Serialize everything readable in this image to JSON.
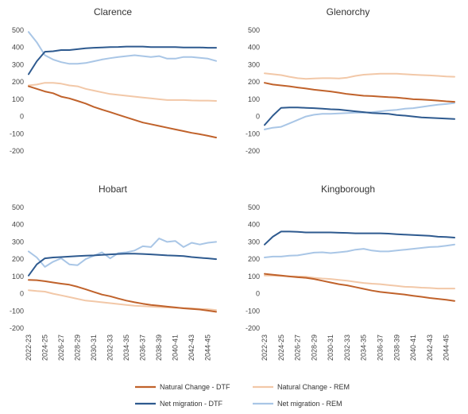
{
  "chart_data": {
    "type": "line",
    "legend_position": "bottom",
    "grid": false,
    "x": [
      "2022-23",
      "2023-24",
      "2024-25",
      "2025-26",
      "2026-27",
      "2027-28",
      "2028-29",
      "2029-30",
      "2030-31",
      "2031-32",
      "2032-33",
      "2033-34",
      "2034-35",
      "2035-36",
      "2036-37",
      "2037-38",
      "2038-39",
      "2039-40",
      "2040-41",
      "2041-42",
      "2042-43",
      "2043-44",
      "2044-45",
      "2045-46"
    ],
    "x_tick_labels": [
      "2022-23",
      "2024-25",
      "2026-27",
      "2028-29",
      "2030-31",
      "2032-33",
      "2034-35",
      "2036-37",
      "2038-39",
      "2040-41",
      "2042-43",
      "2044-45"
    ],
    "ylim": [
      -200,
      500
    ],
    "y_ticks": [
      "500",
      "400",
      "300",
      "200",
      "100",
      "0",
      "-100",
      "-200"
    ],
    "legend": [
      {
        "key": "nc_dtf",
        "label": "Natural Change - DTF",
        "color": "#c0622b"
      },
      {
        "key": "nc_rem",
        "label": "Natural Change - REM",
        "color": "#f2c8a8"
      },
      {
        "key": "nm_dtf",
        "label": "Net migration - DTF",
        "color": "#2e5a8f"
      },
      {
        "key": "nm_rem",
        "label": "Net migration - REM",
        "color": "#a9c6e6"
      }
    ],
    "panels": [
      {
        "title": "Clarence",
        "series": {
          "nc_dtf": [
            175,
            160,
            145,
            135,
            115,
            105,
            90,
            75,
            55,
            40,
            25,
            10,
            -5,
            -20,
            -35,
            -45,
            -55,
            -65,
            -75,
            -85,
            -95,
            -103,
            -112,
            -122
          ],
          "nc_rem": [
            180,
            185,
            195,
            195,
            190,
            180,
            175,
            160,
            150,
            140,
            130,
            125,
            120,
            115,
            110,
            105,
            100,
            95,
            95,
            95,
            93,
            92,
            92,
            90
          ],
          "nm_dtf": [
            245,
            320,
            375,
            378,
            385,
            385,
            390,
            395,
            398,
            400,
            402,
            403,
            405,
            405,
            405,
            402,
            402,
            402,
            402,
            400,
            400,
            400,
            398,
            398
          ],
          "nm_rem": [
            490,
            430,
            355,
            330,
            315,
            305,
            305,
            310,
            320,
            330,
            338,
            345,
            350,
            355,
            350,
            345,
            350,
            335,
            335,
            345,
            345,
            340,
            335,
            322
          ]
        }
      },
      {
        "title": "Glenorchy",
        "series": {
          "nc_dtf": [
            195,
            185,
            180,
            175,
            168,
            162,
            155,
            150,
            145,
            138,
            130,
            125,
            120,
            118,
            115,
            112,
            110,
            105,
            100,
            98,
            95,
            92,
            88,
            85
          ],
          "nc_rem": [
            250,
            245,
            240,
            230,
            222,
            218,
            220,
            222,
            222,
            220,
            225,
            235,
            242,
            245,
            248,
            248,
            248,
            245,
            242,
            240,
            238,
            235,
            232,
            230
          ],
          "nm_dtf": [
            -50,
            5,
            50,
            52,
            52,
            50,
            48,
            45,
            42,
            40,
            35,
            30,
            25,
            20,
            18,
            15,
            8,
            5,
            0,
            -5,
            -8,
            -10,
            -12,
            -15
          ],
          "nm_rem": [
            -75,
            -65,
            -60,
            -40,
            -20,
            0,
            10,
            15,
            15,
            18,
            20,
            22,
            22,
            25,
            30,
            35,
            38,
            45,
            48,
            55,
            62,
            68,
            72,
            78
          ]
        }
      },
      {
        "title": "Hobart",
        "series": {
          "nc_dtf": [
            80,
            78,
            72,
            65,
            58,
            52,
            40,
            25,
            10,
            -5,
            -15,
            -28,
            -40,
            -50,
            -58,
            -65,
            -70,
            -75,
            -80,
            -85,
            -88,
            -92,
            -98,
            -105
          ],
          "nc_rem": [
            20,
            15,
            12,
            0,
            -10,
            -20,
            -30,
            -40,
            -45,
            -50,
            -55,
            -60,
            -65,
            -70,
            -72,
            -75,
            -78,
            -80,
            -82,
            -83,
            -85,
            -88,
            -90,
            -95
          ],
          "nm_dtf": [
            105,
            170,
            205,
            210,
            212,
            215,
            218,
            220,
            222,
            225,
            228,
            230,
            232,
            232,
            230,
            228,
            225,
            222,
            220,
            218,
            212,
            208,
            205,
            200
          ],
          "nm_rem": [
            245,
            210,
            155,
            185,
            205,
            170,
            165,
            200,
            220,
            240,
            205,
            235,
            240,
            250,
            275,
            270,
            320,
            300,
            305,
            270,
            295,
            285,
            295,
            300
          ]
        }
      },
      {
        "title": "Kingborough",
        "series": {
          "nc_dtf": [
            115,
            110,
            105,
            100,
            95,
            92,
            85,
            75,
            65,
            55,
            48,
            38,
            28,
            18,
            10,
            5,
            0,
            -5,
            -12,
            -18,
            -25,
            -30,
            -35,
            -42
          ],
          "nc_rem": [
            105,
            105,
            103,
            100,
            100,
            98,
            92,
            88,
            85,
            80,
            75,
            68,
            62,
            58,
            55,
            50,
            45,
            40,
            38,
            35,
            33,
            30,
            30,
            30
          ],
          "nm_dtf": [
            285,
            330,
            360,
            360,
            358,
            355,
            355,
            355,
            355,
            353,
            352,
            350,
            350,
            350,
            350,
            348,
            345,
            342,
            340,
            338,
            335,
            330,
            328,
            325
          ],
          "nm_rem": [
            210,
            215,
            215,
            220,
            222,
            230,
            238,
            240,
            235,
            240,
            245,
            255,
            260,
            250,
            245,
            245,
            250,
            255,
            260,
            265,
            270,
            272,
            278,
            285
          ]
        }
      }
    ]
  }
}
